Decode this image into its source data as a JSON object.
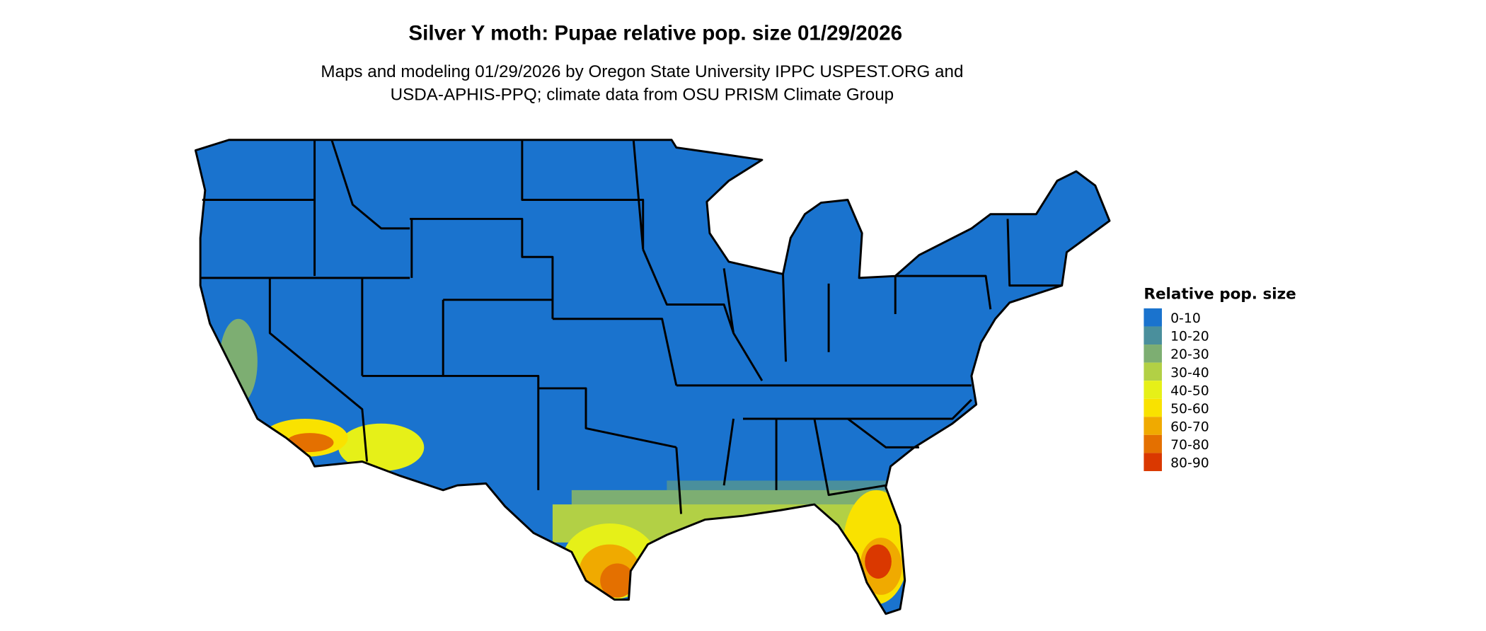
{
  "title": "Silver Y moth: Pupae relative pop. size 01/29/2026",
  "subtitle_line1": "Maps and modeling 01/29/2026 by Oregon State University IPPC USPEST.ORG and",
  "subtitle_line2": "USDA-APHIS-PPQ; climate data from OSU PRISM Climate Group",
  "legend": {
    "title": "Relative pop. size",
    "items": [
      {
        "label": "0-10",
        "color": "#1A73CE"
      },
      {
        "label": "10-20",
        "color": "#4A8F9C"
      },
      {
        "label": "20-30",
        "color": "#7DAE72"
      },
      {
        "label": "30-40",
        "color": "#B2D045"
      },
      {
        "label": "40-50",
        "color": "#E6F018"
      },
      {
        "label": "50-60",
        "color": "#F9E200"
      },
      {
        "label": "60-70",
        "color": "#F0AA00"
      },
      {
        "label": "70-80",
        "color": "#E47000"
      },
      {
        "label": "80-90",
        "color": "#DA3800"
      }
    ]
  },
  "map": {
    "region": "Contiguous United States",
    "boundaries": "state lines",
    "base_class": "0-10",
    "high_areas": [
      "south Florida",
      "south Texas",
      "southern Arizona",
      "southern California"
    ]
  }
}
